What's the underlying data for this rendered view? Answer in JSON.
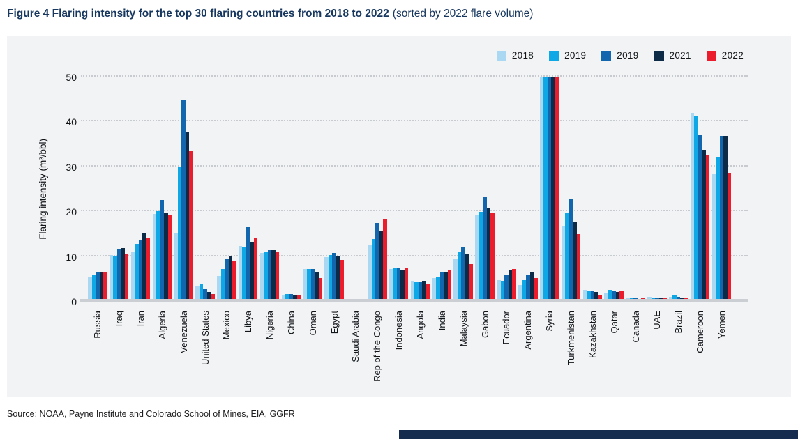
{
  "header": {
    "title_bold": "Figure 4 Flaring intensity for the top 30 flaring countries from 2018 to 2022",
    "title_note": "(sorted by 2022 flare volume)"
  },
  "footer": {
    "source": "Source: NOAA, Payne Institute and Colorado School of Mines, EIA, GGFR"
  },
  "colors": {
    "title": "#17375E",
    "panel_background": "#F1F3F5",
    "gridline": "#C7CBD0",
    "baseline": "#CBCFD3",
    "footer_bar": "#152C4E",
    "series_2018": "#AAD8F2",
    "series_2019a": "#0FA8E6",
    "series_2019b": "#1166AD",
    "series_2021": "#0D2A46",
    "series_2022": "#EB1D2C"
  },
  "chart_data": {
    "type": "bar",
    "title": "Figure 4 Flaring intensity for the top 30 flaring countries from 2018 to 2022 (sorted by 2022 flare volume)",
    "xlabel": "",
    "ylabel": "Flaring intensity (m³/bbl)",
    "ylim": [
      0,
      50
    ],
    "yticks": [
      0,
      10,
      20,
      30,
      40,
      50
    ],
    "grid": "horizontal dotted",
    "legend_position": "top-right",
    "legend": [
      "2018",
      "2019",
      "2019",
      "2021",
      "2022"
    ],
    "categories": [
      "Russia",
      "Iraq",
      "Iran",
      "Algeria",
      "Venezuela",
      "United States",
      "Mexico",
      "Libya",
      "Nigeria",
      "China",
      "Oman",
      "Egypt",
      "Saudi Arabia",
      "Rep of the Congo",
      "Indonesia",
      "Angola",
      "India",
      "Malaysia",
      "Gabon",
      "Ecuador",
      "Argentina",
      "Syria",
      "Turkmenistan",
      "Kazakhstan",
      "Qatar",
      "Canada",
      "UAE",
      "Brazil",
      "Cameroon",
      "Yemen"
    ],
    "series": [
      {
        "name": "2018",
        "color": "#AAD8F2",
        "values": [
          5.3,
          10.3,
          11.0,
          19.4,
          15.0,
          3.4,
          5.6,
          12.3,
          10.7,
          1.2,
          7.1,
          9.8,
          0.4,
          12.6,
          7.2,
          4.5,
          5.2,
          9.3,
          19.3,
          4.6,
          3.6,
          50,
          16.7,
          2.5,
          1.8,
          0.8,
          0.9,
          1.0,
          41.9,
          28.2
        ]
      },
      {
        "name": "2019",
        "color": "#0FA8E6",
        "values": [
          5.7,
          10.1,
          12.7,
          20.0,
          30.0,
          3.8,
          7.1,
          12.1,
          11.0,
          1.5,
          7.2,
          10.2,
          0.5,
          13.8,
          7.4,
          4.2,
          5.5,
          10.8,
          19.9,
          4.5,
          4.7,
          50,
          19.6,
          2.3,
          2.5,
          0.7,
          0.8,
          1.4,
          41.2,
          32.1
        ]
      },
      {
        "name": "2019",
        "color": "#1166AD",
        "values": [
          6.5,
          11.5,
          13.5,
          22.5,
          44.7,
          2.6,
          9.3,
          16.5,
          11.3,
          1.6,
          7.2,
          10.7,
          0.5,
          17.4,
          7.3,
          4.2,
          6.4,
          11.9,
          23.1,
          5.7,
          5.8,
          50,
          22.7,
          2.2,
          2.2,
          0.8,
          0.8,
          1.0,
          36.9,
          36.8
        ]
      },
      {
        "name": "2021",
        "color": "#0D2A46",
        "values": [
          6.6,
          11.8,
          15.2,
          19.5,
          37.8,
          2.0,
          9.9,
          13.1,
          11.4,
          1.4,
          6.6,
          9.9,
          0.4,
          15.7,
          6.8,
          4.5,
          6.3,
          10.6,
          20.8,
          6.9,
          6.4,
          50,
          17.6,
          2.0,
          2.0,
          0.5,
          0.7,
          0.7,
          33.7,
          36.8
        ]
      },
      {
        "name": "2022",
        "color": "#EB1D2C",
        "values": [
          6.4,
          10.6,
          14.1,
          19.2,
          33.5,
          1.6,
          8.8,
          14.0,
          10.8,
          1.2,
          5.1,
          9.2,
          0.3,
          18.1,
          7.5,
          3.8,
          7.0,
          8.2,
          19.5,
          7.1,
          5.1,
          50,
          14.9,
          1.2,
          2.2,
          0.6,
          0.7,
          0.6,
          32.4,
          28.6
        ]
      }
    ]
  }
}
